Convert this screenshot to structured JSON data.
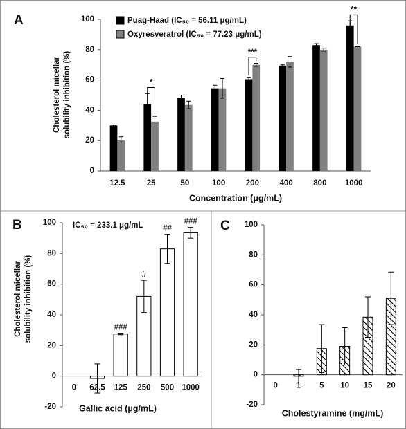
{
  "chart_data": [
    {
      "type": "bar",
      "panel_label": "A",
      "y_label": [
        "Cholesterol micellar",
        "solubility inhibition (%)"
      ],
      "x_label": "Concentration (μg/mL)",
      "categories": [
        "12.5",
        "25",
        "50",
        "100",
        "200",
        "400",
        "800",
        "1000"
      ],
      "series": [
        {
          "name": "Puag-Haad (IC₅₀ = 56.11 μg/mL)",
          "color": "#000000",
          "values": [
            30,
            44,
            48,
            54.5,
            60.5,
            69.5,
            83,
            96
          ],
          "errors": [
            0.3,
            7,
            2,
            2,
            1,
            0.5,
            1,
            3
          ]
        },
        {
          "name": "Oxyresveratrol (IC₅₀ = 77.23 μg/mL)",
          "color": "#808080",
          "values": [
            20.5,
            32.5,
            43.5,
            54.5,
            70,
            72,
            80,
            82
          ],
          "errors": [
            2,
            3.5,
            2.5,
            6.5,
            1,
            3.5,
            1,
            0
          ]
        }
      ],
      "annotations": [
        null,
        "*",
        null,
        null,
        "***",
        null,
        null,
        "**"
      ],
      "ylim": [
        0,
        100
      ],
      "yticks": [
        0,
        20,
        40,
        60,
        80,
        100
      ]
    },
    {
      "type": "bar",
      "panel_label": "B",
      "y_label": [
        "Cholesterol micellar",
        "solubility inhibition (%)"
      ],
      "x_label": "Gallic acid (μg/mL)",
      "note": "IC₅₀ = 233.1 μg/mL",
      "categories": [
        "0",
        "62.5",
        "125",
        "250",
        "500",
        "1000"
      ],
      "values": [
        null,
        -1.5,
        27.5,
        52,
        83,
        93.5
      ],
      "errors": [
        null,
        9.5,
        0.5,
        10.5,
        9.5,
        3.5
      ],
      "annotations": [
        null,
        null,
        "###",
        "#",
        "##",
        "###"
      ],
      "color": "#ffffff",
      "ylim": [
        -20,
        100
      ],
      "yticks": [
        -20,
        0,
        20,
        40,
        60,
        80,
        100
      ]
    },
    {
      "type": "bar",
      "panel_label": "C",
      "x_label": "Cholestyramine (mg/mL)",
      "categories": [
        "0",
        "1",
        "5",
        "10",
        "15",
        "20"
      ],
      "values": [
        null,
        -1,
        17.5,
        19,
        38.5,
        51
      ],
      "errors": [
        null,
        4.5,
        16,
        12.5,
        13.5,
        17.5
      ],
      "hatch": true,
      "color": "#000000",
      "ylim": [
        -20,
        100
      ],
      "yticks": [
        -20,
        0,
        20,
        40,
        60,
        80,
        100
      ]
    }
  ]
}
